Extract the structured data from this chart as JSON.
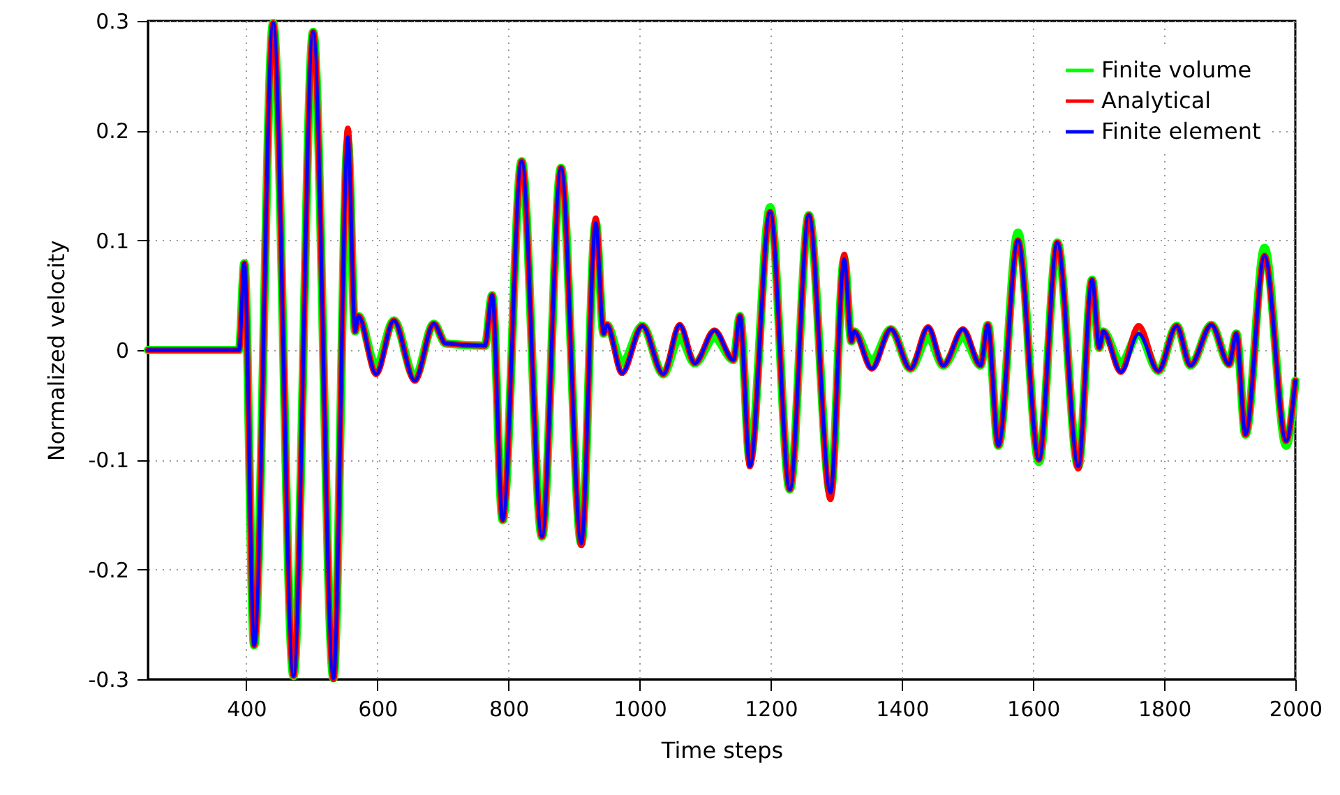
{
  "chart_data": {
    "type": "line",
    "xlabel": "Time steps",
    "ylabel": "Normalized velocity",
    "x": [
      250,
      389,
      397,
      412,
      441,
      472,
      502,
      533,
      555,
      566,
      571,
      598,
      625,
      657,
      686,
      704,
      764,
      775,
      791,
      820,
      851,
      880,
      911,
      933,
      945,
      950,
      973,
      1004,
      1036,
      1061,
      1084,
      1114,
      1143,
      1153,
      1168,
      1199,
      1229,
      1258,
      1291,
      1312,
      1323,
      1327,
      1354,
      1383,
      1413,
      1440,
      1463,
      1493,
      1520,
      1531,
      1547,
      1577,
      1609,
      1637,
      1669,
      1690,
      1701,
      1707,
      1734,
      1761,
      1791,
      1819,
      1840,
      1872,
      1899,
      1910,
      1924,
      1953,
      1986,
      2000
    ],
    "series": [
      {
        "name": "Finite volume",
        "color": "#00ff00",
        "values": [
          0,
          0,
          0.079,
          -0.269,
          0.298,
          -0.297,
          0.29,
          -0.299,
          0.19,
          0.017,
          0.031,
          -0.015,
          0.027,
          -0.025,
          0.024,
          0.006,
          0.004,
          0.05,
          -0.155,
          0.172,
          -0.17,
          0.166,
          -0.176,
          0.116,
          0.015,
          0.023,
          -0.012,
          0.022,
          -0.022,
          0.012,
          -0.012,
          0.011,
          -0.009,
          0.031,
          -0.1,
          0.13,
          -0.127,
          0.123,
          -0.13,
          0.083,
          0.008,
          0.017,
          -0.01,
          0.019,
          -0.017,
          0.012,
          -0.014,
          0.012,
          -0.014,
          0.023,
          -0.087,
          0.107,
          -0.102,
          0.098,
          -0.106,
          0.064,
          0.002,
          0.017,
          -0.012,
          0.015,
          -0.019,
          0.022,
          -0.014,
          0.023,
          -0.013,
          0.015,
          -0.077,
          0.093,
          -0.087,
          -0.028
        ]
      },
      {
        "name": "Analytical",
        "color": "#ff0000",
        "values": [
          0,
          0,
          0.079,
          -0.269,
          0.298,
          -0.297,
          0.29,
          -0.3,
          0.202,
          0.017,
          0.031,
          -0.022,
          0.027,
          -0.028,
          0.024,
          0.006,
          0.004,
          0.05,
          -0.155,
          0.172,
          -0.17,
          0.166,
          -0.178,
          0.12,
          0.015,
          0.023,
          -0.021,
          0.022,
          -0.022,
          0.023,
          -0.012,
          0.018,
          -0.009,
          0.031,
          -0.106,
          0.126,
          -0.127,
          0.123,
          -0.136,
          0.087,
          0.008,
          0.017,
          -0.017,
          0.019,
          -0.017,
          0.021,
          -0.014,
          0.019,
          -0.014,
          0.023,
          -0.087,
          0.1,
          -0.1,
          0.098,
          -0.108,
          0.064,
          0.002,
          0.017,
          -0.02,
          0.022,
          -0.019,
          0.022,
          -0.014,
          0.023,
          -0.013,
          0.015,
          -0.077,
          0.086,
          -0.083,
          -0.028
        ]
      },
      {
        "name": "Finite element",
        "color": "#0000ff",
        "values": [
          0,
          0,
          0.079,
          -0.269,
          0.298,
          -0.297,
          0.29,
          -0.299,
          0.194,
          0.017,
          0.031,
          -0.022,
          0.027,
          -0.028,
          0.024,
          0.006,
          0.004,
          0.05,
          -0.155,
          0.172,
          -0.17,
          0.166,
          -0.176,
          0.116,
          0.015,
          0.023,
          -0.021,
          0.022,
          -0.022,
          0.023,
          -0.012,
          0.018,
          -0.009,
          0.031,
          -0.106,
          0.126,
          -0.127,
          0.123,
          -0.13,
          0.083,
          0.008,
          0.017,
          -0.017,
          0.019,
          -0.017,
          0.021,
          -0.014,
          0.019,
          -0.014,
          0.023,
          -0.087,
          0.1,
          -0.1,
          0.098,
          -0.106,
          0.064,
          0.002,
          0.017,
          -0.02,
          0.015,
          -0.019,
          0.022,
          -0.014,
          0.023,
          -0.013,
          0.015,
          -0.077,
          0.086,
          -0.083,
          -0.028
        ]
      }
    ],
    "xlim": [
      250,
      2000
    ],
    "xticks": [
      400,
      600,
      800,
      1000,
      1200,
      1400,
      1600,
      1800,
      2000
    ],
    "ylim": [
      -0.3,
      0.3
    ],
    "yticks": [
      -0.3,
      -0.2,
      -0.1,
      0,
      0.1,
      0.2,
      0.3
    ],
    "grid": true,
    "legend": "top right",
    "line_style": "solid",
    "marker": "none"
  }
}
